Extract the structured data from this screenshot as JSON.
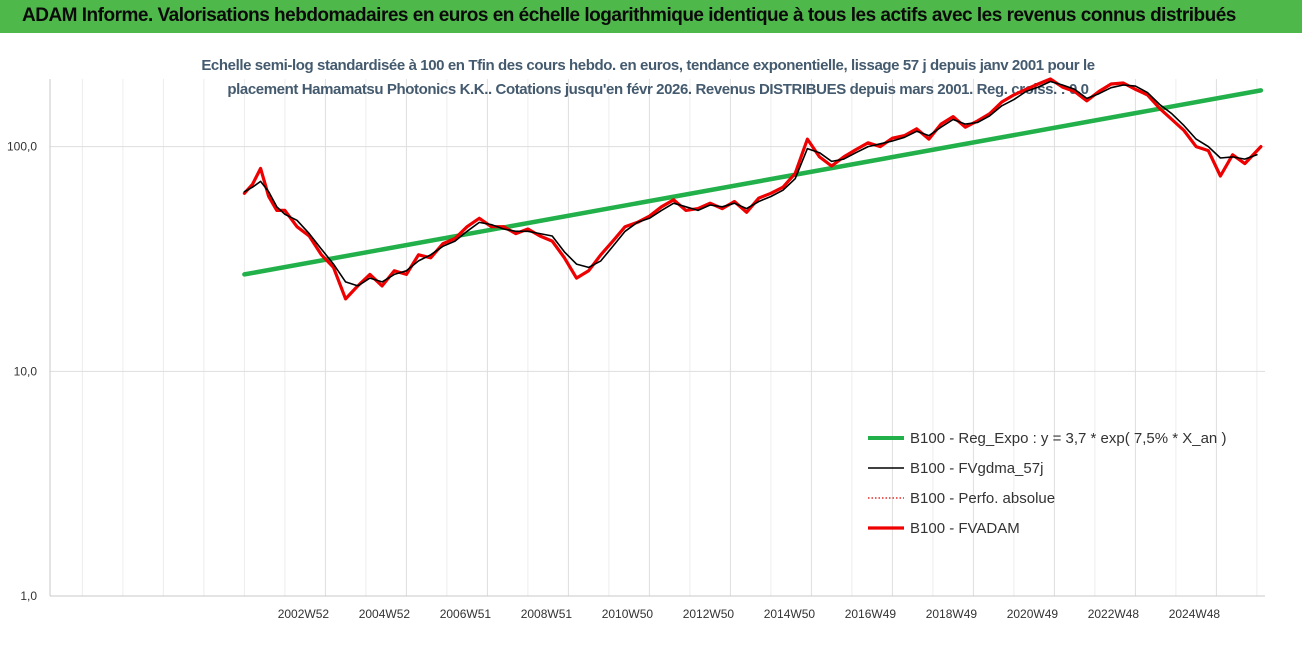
{
  "header": {
    "title": "ADAM Informe. Valorisations hebdomadaires en euros en échelle logarithmique identique à tous les actifs avec les revenus connus distribués"
  },
  "colors": {
    "header_bg": "#4fb84a",
    "corner_accent": "#f2c418",
    "trend": "#22b04b",
    "smoothed": "#000000",
    "perf_absolute": "#e00000",
    "fvadam": "#ee0000"
  },
  "chart_data": {
    "type": "line",
    "subtitle_lines": [
      "Echelle semi-log standardisée à 100 en Tfin des cours hebdo. en euros, tendance exponentielle, lissage 57 j depuis janv 2001 pour le",
      "placement Hamamatsu Photonics K.K.. Cotations jusqu'en févr 2026. Revenus DISTRIBUES depuis mars 2001. Reg. croiss. : 0,0"
    ],
    "y_scale": "log",
    "ylim": [
      1,
      200
    ],
    "y_ticks": [
      {
        "value": 1,
        "label": "1,0"
      },
      {
        "value": 10,
        "label": "10,0"
      },
      {
        "value": 100,
        "label": "100,0"
      }
    ],
    "xlim": [
      1996.2,
      2026.2
    ],
    "x_ticks": [
      "2002W52",
      "2004W52",
      "2006W51",
      "2008W51",
      "2010W50",
      "2012W50",
      "2014W50",
      "2016W49",
      "2018W49",
      "2020W49",
      "2022W48",
      "2024W48"
    ],
    "x_tick_positions": [
      2003.0,
      2005.0,
      2007.0,
      2009.0,
      2011.0,
      2013.0,
      2015.0,
      2017.0,
      2019.0,
      2021.0,
      2023.0,
      2025.0
    ],
    "grid": true,
    "legend_position": "bottom-right",
    "series": [
      {
        "name": "B100 - Reg_Expo : y = 3,7 * exp( 7,5% *  X_an )",
        "style": "trend",
        "x": [
          2001.0,
          2026.1
        ],
        "values": [
          27,
          178
        ]
      },
      {
        "name": "B100 - FVgdma_57j",
        "style": "smooth",
        "x": [
          2001.0,
          2001.2,
          2001.4,
          2001.6,
          2001.8,
          2002.0,
          2002.3,
          2002.6,
          2002.9,
          2003.2,
          2003.5,
          2003.8,
          2004.1,
          2004.4,
          2004.7,
          2005.0,
          2005.3,
          2005.6,
          2005.9,
          2006.2,
          2006.5,
          2006.8,
          2007.1,
          2007.4,
          2007.7,
          2008.0,
          2008.3,
          2008.6,
          2008.9,
          2009.2,
          2009.5,
          2009.8,
          2010.1,
          2010.4,
          2010.7,
          2011.0,
          2011.3,
          2011.6,
          2011.9,
          2012.2,
          2012.5,
          2012.8,
          2013.1,
          2013.4,
          2013.7,
          2014.0,
          2014.3,
          2014.6,
          2014.9,
          2015.2,
          2015.5,
          2015.8,
          2016.1,
          2016.4,
          2016.7,
          2017.0,
          2017.3,
          2017.6,
          2017.9,
          2018.2,
          2018.5,
          2018.8,
          2019.1,
          2019.4,
          2019.7,
          2020.0,
          2020.3,
          2020.6,
          2020.9,
          2021.2,
          2021.5,
          2021.8,
          2022.1,
          2022.4,
          2022.7,
          2023.0,
          2023.3,
          2023.6,
          2023.9,
          2024.2,
          2024.5,
          2024.8,
          2025.1,
          2025.4,
          2025.7,
          2026.0
        ],
        "values": [
          63,
          66,
          70,
          63,
          54,
          50,
          47,
          41,
          35,
          30,
          25,
          24,
          26,
          25,
          27,
          28,
          31,
          33,
          36,
          38,
          42,
          46,
          45,
          43,
          42,
          42,
          41,
          40,
          34,
          30,
          29,
          31,
          36,
          42,
          46,
          48,
          52,
          56,
          54,
          52,
          55,
          54,
          56,
          53,
          57,
          60,
          64,
          72,
          98,
          94,
          86,
          88,
          94,
          100,
          103,
          106,
          110,
          117,
          112,
          122,
          132,
          126,
          128,
          137,
          152,
          162,
          176,
          184,
          195,
          188,
          180,
          164,
          172,
          183,
          188,
          186,
          174,
          154,
          140,
          124,
          108,
          100,
          89,
          90,
          88,
          92
        ]
      },
      {
        "name": "B100 - Perfo. absolue",
        "style": "dotted",
        "x": [
          2001.0,
          2001.2,
          2001.4,
          2001.6,
          2001.8,
          2002.0,
          2002.3,
          2002.6,
          2002.9,
          2003.2,
          2003.5,
          2003.8,
          2004.1,
          2004.4,
          2004.7,
          2005.0,
          2005.3,
          2005.6,
          2005.9,
          2006.2,
          2006.5,
          2006.8,
          2007.1,
          2007.4,
          2007.7,
          2008.0,
          2008.3,
          2008.6,
          2008.9,
          2009.2,
          2009.5,
          2009.8,
          2010.1,
          2010.4,
          2010.7,
          2011.0,
          2011.3,
          2011.6,
          2011.9,
          2012.2,
          2012.5,
          2012.8,
          2013.1,
          2013.4,
          2013.7,
          2014.0,
          2014.3,
          2014.6,
          2014.9,
          2015.2,
          2015.5,
          2015.8,
          2016.1,
          2016.4,
          2016.7,
          2017.0,
          2017.3,
          2017.6,
          2017.9,
          2018.2,
          2018.5,
          2018.8,
          2019.1,
          2019.4,
          2019.7,
          2020.0,
          2020.3,
          2020.6,
          2020.9,
          2021.2,
          2021.5,
          2021.8,
          2022.1,
          2022.4,
          2022.7,
          2023.0,
          2023.3,
          2023.6,
          2023.9,
          2024.2,
          2024.5,
          2024.8,
          2025.1,
          2025.4,
          2025.7,
          2026.1
        ],
        "values": [
          62,
          68,
          80,
          60,
          52,
          52,
          44,
          40,
          33,
          29,
          21,
          24,
          27,
          24,
          28,
          27,
          33,
          32,
          37,
          39,
          44,
          48,
          44,
          44,
          41,
          43,
          40,
          38,
          32,
          26,
          28,
          33,
          38,
          44,
          46,
          49,
          54,
          58,
          52,
          53,
          56,
          53,
          57,
          51,
          59,
          62,
          66,
          76,
          108,
          90,
          82,
          90,
          97,
          104,
          100,
          109,
          112,
          120,
          108,
          126,
          136,
          122,
          130,
          140,
          158,
          170,
          180,
          190,
          200,
          184,
          176,
          160,
          176,
          190,
          192,
          180,
          170,
          148,
          132,
          118,
          100,
          96,
          74,
          92,
          84,
          100
        ]
      },
      {
        "name": "B100 - FVADAM",
        "style": "thick",
        "x": [
          2001.0,
          2001.2,
          2001.4,
          2001.6,
          2001.8,
          2002.0,
          2002.3,
          2002.6,
          2002.9,
          2003.2,
          2003.5,
          2003.8,
          2004.1,
          2004.4,
          2004.7,
          2005.0,
          2005.3,
          2005.6,
          2005.9,
          2006.2,
          2006.5,
          2006.8,
          2007.1,
          2007.4,
          2007.7,
          2008.0,
          2008.3,
          2008.6,
          2008.9,
          2009.2,
          2009.5,
          2009.8,
          2010.1,
          2010.4,
          2010.7,
          2011.0,
          2011.3,
          2011.6,
          2011.9,
          2012.2,
          2012.5,
          2012.8,
          2013.1,
          2013.4,
          2013.7,
          2014.0,
          2014.3,
          2014.6,
          2014.9,
          2015.2,
          2015.5,
          2015.8,
          2016.1,
          2016.4,
          2016.7,
          2017.0,
          2017.3,
          2017.6,
          2017.9,
          2018.2,
          2018.5,
          2018.8,
          2019.1,
          2019.4,
          2019.7,
          2020.0,
          2020.3,
          2020.6,
          2020.9,
          2021.2,
          2021.5,
          2021.8,
          2022.1,
          2022.4,
          2022.7,
          2023.0,
          2023.3,
          2023.6,
          2023.9,
          2024.2,
          2024.5,
          2024.8,
          2025.1,
          2025.4,
          2025.7,
          2026.1
        ],
        "values": [
          62,
          68,
          80,
          60,
          52,
          52,
          44,
          40,
          33,
          29,
          21,
          24,
          27,
          24,
          28,
          27,
          33,
          32,
          37,
          39,
          44,
          48,
          44,
          44,
          41,
          43,
          40,
          38,
          32,
          26,
          28,
          33,
          38,
          44,
          46,
          49,
          54,
          58,
          52,
          53,
          56,
          53,
          57,
          51,
          59,
          62,
          66,
          76,
          108,
          90,
          82,
          90,
          97,
          104,
          100,
          109,
          112,
          120,
          108,
          126,
          136,
          122,
          130,
          140,
          158,
          170,
          180,
          190,
          200,
          184,
          176,
          160,
          176,
          190,
          192,
          180,
          170,
          148,
          132,
          118,
          100,
          96,
          74,
          92,
          84,
          100
        ]
      }
    ]
  }
}
